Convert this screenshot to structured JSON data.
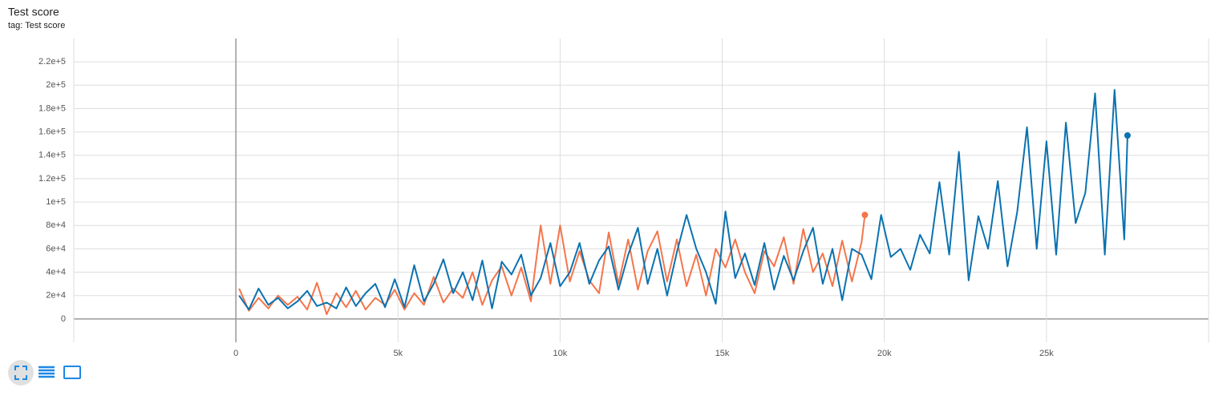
{
  "chart_data": {
    "type": "line",
    "title": "Test score",
    "subtitle": "tag: Test score",
    "xlim": [
      -5000,
      30000
    ],
    "xticks": [
      0,
      {
        "value": 5000,
        "label": "5k"
      },
      {
        "value": 10000,
        "label": "10k"
      },
      {
        "value": 15000,
        "label": "15k"
      },
      {
        "value": 20000,
        "label": "20k"
      },
      {
        "value": 25000,
        "label": "25k"
      }
    ],
    "ylim": [
      -20000,
      240000
    ],
    "yticks": [
      0,
      {
        "value": 20000,
        "label": "2e+4"
      },
      {
        "value": 40000,
        "label": "4e+4"
      },
      {
        "value": 60000,
        "label": "6e+4"
      },
      {
        "value": 80000,
        "label": "8e+4"
      },
      {
        "value": 100000,
        "label": "1e+5"
      },
      {
        "value": 120000,
        "label": "1.2e+5"
      },
      {
        "value": 140000,
        "label": "1.4e+5"
      },
      {
        "value": 160000,
        "label": "1.6e+5"
      },
      {
        "value": 180000,
        "label": "1.8e+5"
      },
      {
        "value": 200000,
        "label": "2e+5"
      },
      {
        "value": 220000,
        "label": "2.2e+5"
      }
    ],
    "grid": true,
    "series": [
      {
        "color": "#f5754a",
        "x": [
          100,
          400,
          700,
          1000,
          1300,
          1600,
          1900,
          2200,
          2500,
          2800,
          3100,
          3400,
          3700,
          4000,
          4300,
          4600,
          4900,
          5200,
          5500,
          5800,
          6100,
          6400,
          6700,
          7000,
          7300,
          7600,
          7900,
          8200,
          8500,
          8800,
          9100,
          9400,
          9700,
          10000,
          10300,
          10600,
          10900,
          11200,
          11500,
          11800,
          12100,
          12400,
          12700,
          13000,
          13300,
          13600,
          13900,
          14200,
          14500,
          14800,
          15100,
          15400,
          15700,
          16000,
          16300,
          16600,
          16900,
          17200,
          17500,
          17800,
          18100,
          18400,
          18700,
          19000,
          19300,
          19400
        ],
        "values": [
          26000,
          7000,
          18000,
          9000,
          20000,
          12000,
          19000,
          8000,
          31000,
          4000,
          22000,
          10000,
          24000,
          8000,
          18000,
          12000,
          25000,
          8000,
          22000,
          12000,
          36000,
          14000,
          26000,
          18000,
          40000,
          12000,
          33000,
          45000,
          20000,
          44000,
          15000,
          80000,
          30000,
          80000,
          32000,
          58000,
          33000,
          22000,
          74000,
          30000,
          68000,
          25000,
          58000,
          75000,
          32000,
          68000,
          28000,
          55000,
          20000,
          60000,
          44000,
          68000,
          40000,
          22000,
          58000,
          45000,
          70000,
          30000,
          77000,
          40000,
          56000,
          28000,
          67000,
          32000,
          66000,
          89000
        ]
      },
      {
        "color": "#0a72b0",
        "x": [
          100,
          400,
          700,
          1000,
          1300,
          1600,
          1900,
          2200,
          2500,
          2800,
          3100,
          3400,
          3700,
          4000,
          4300,
          4600,
          4900,
          5200,
          5500,
          5800,
          6100,
          6400,
          6700,
          7000,
          7300,
          7600,
          7900,
          8200,
          8500,
          8800,
          9100,
          9400,
          9700,
          10000,
          10300,
          10600,
          10900,
          11200,
          11500,
          11800,
          12100,
          12400,
          12700,
          13000,
          13300,
          13600,
          13900,
          14200,
          14500,
          14800,
          15100,
          15400,
          15700,
          16000,
          16300,
          16600,
          16900,
          17200,
          17500,
          17800,
          18100,
          18400,
          18700,
          19000,
          19300,
          19600,
          19900,
          20200,
          20500,
          20800,
          21100,
          21400,
          21700,
          22000,
          22300,
          22600,
          22900,
          23200,
          23500,
          23800,
          24100,
          24400,
          24700,
          25000,
          25300,
          25600,
          25900,
          26200,
          26500,
          26800,
          27100,
          27400,
          27500
        ],
        "values": [
          20000,
          8000,
          26000,
          12000,
          18000,
          9000,
          15000,
          24000,
          11000,
          14000,
          9000,
          27000,
          11000,
          22000,
          30000,
          10000,
          34000,
          10000,
          46000,
          15000,
          30000,
          51000,
          22000,
          40000,
          16000,
          50000,
          9000,
          49000,
          38000,
          55000,
          20000,
          35000,
          65000,
          28000,
          40000,
          65000,
          30000,
          50000,
          62000,
          25000,
          55000,
          78000,
          30000,
          60000,
          20000,
          57000,
          89000,
          60000,
          40000,
          13000,
          92000,
          35000,
          56000,
          29000,
          65000,
          25000,
          54000,
          33000,
          58000,
          78000,
          30000,
          60000,
          16000,
          60000,
          55000,
          34000,
          89000,
          53000,
          60000,
          42000,
          72000,
          56000,
          117000,
          55000,
          143000,
          33000,
          88000,
          60000,
          118000,
          45000,
          92000,
          164000,
          60000,
          152000,
          55000,
          168000,
          82000,
          108000,
          193000,
          55000,
          196000,
          68000,
          157000
        ]
      }
    ]
  }
}
